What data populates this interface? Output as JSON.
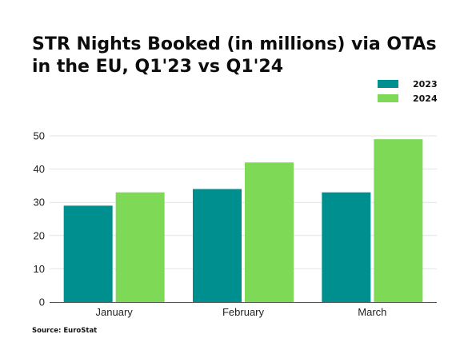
{
  "colors": {
    "series_2023": "#008f8f",
    "series_2024": "#7ed957",
    "grid": "#e3e3e3",
    "axis": "#555555"
  },
  "source": "Source: EuroStat",
  "chart_data": {
    "type": "bar",
    "title": "STR Nights Booked (in millions) via OTAs in the EU, Q1'23 vs Q1'24",
    "xlabel": "",
    "ylabel": "",
    "categories": [
      "January",
      "February",
      "March"
    ],
    "series": [
      {
        "name": "2023",
        "values": [
          29,
          34,
          33
        ]
      },
      {
        "name": "2024",
        "values": [
          33,
          42,
          49
        ]
      }
    ],
    "ylim": [
      0,
      50
    ],
    "yticks": [
      0,
      10,
      20,
      30,
      40,
      50
    ],
    "grid": true,
    "legend": "top-right"
  }
}
